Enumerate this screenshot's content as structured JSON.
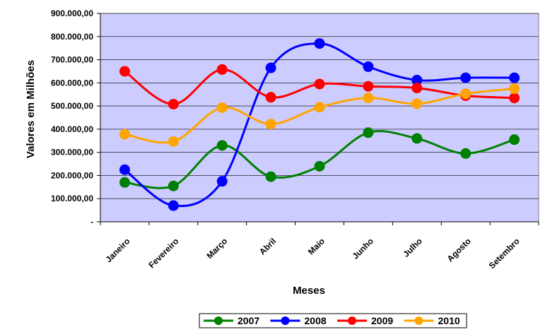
{
  "chart_data": {
    "type": "line",
    "smooth": true,
    "title": "",
    "xlabel": "Meses",
    "ylabel": "Valores em Milhões",
    "categories": [
      "Janeiro",
      "Fevereiro",
      "Março",
      "Abril",
      "Maio",
      "Junho",
      "Julho",
      "Agosto",
      "Setembro"
    ],
    "ylim": [
      0,
      900000
    ],
    "yticks": [
      0,
      100000,
      200000,
      300000,
      400000,
      500000,
      600000,
      700000,
      800000,
      900000
    ],
    "ytick_labels": [
      "-",
      "100.000,00",
      "200.000,00",
      "300.000,00",
      "400.000,00",
      "500.000,00",
      "600.000,00",
      "700.000,00",
      "800.000,00",
      "900.000,00"
    ],
    "grid": "horizontal",
    "plot_background": "#ccccff",
    "legend_position": "bottom",
    "series": [
      {
        "name": "2007",
        "color": "#008000",
        "values": [
          170000,
          155000,
          330000,
          195000,
          240000,
          385000,
          360000,
          295000,
          355000
        ]
      },
      {
        "name": "2008",
        "color": "#0000ff",
        "values": [
          225000,
          70000,
          175000,
          665000,
          770000,
          670000,
          612000,
          622000,
          622000
        ]
      },
      {
        "name": "2009",
        "color": "#ff0000",
        "values": [
          650000,
          508000,
          658000,
          538000,
          595000,
          585000,
          578000,
          545000,
          535000
        ]
      },
      {
        "name": "2010",
        "color": "#ffa500",
        "values": [
          378000,
          347000,
          493000,
          422000,
          495000,
          535000,
          510000,
          553000,
          575000
        ]
      }
    ]
  }
}
